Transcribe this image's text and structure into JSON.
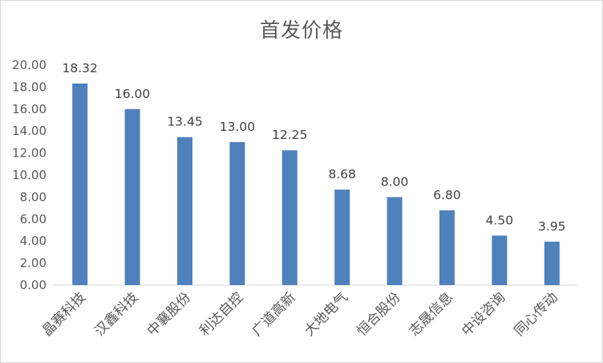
{
  "chart_data": {
    "type": "bar",
    "title": "首发价格",
    "categories": [
      "晶赛科技",
      "汉鑫科技",
      "中襄股份",
      "利达自控",
      "广道高新",
      "大地电气",
      "恒合股份",
      "志晟信息",
      "中设咨询",
      "同心传动"
    ],
    "values": [
      18.32,
      16.0,
      13.45,
      13.0,
      12.25,
      8.68,
      8.0,
      6.8,
      4.5,
      3.95
    ],
    "value_labels": [
      "18.32",
      "16.00",
      "13.45",
      "13.00",
      "12.25",
      "8.68",
      "8.00",
      "6.80",
      "4.50",
      "3.95"
    ],
    "ylim": [
      0,
      20
    ],
    "yticks": [
      "0.00",
      "2.00",
      "4.00",
      "6.00",
      "8.00",
      "10.00",
      "12.00",
      "14.00",
      "16.00",
      "18.00",
      "20.00"
    ],
    "xlabel": "",
    "ylabel": "",
    "grid": false,
    "legend": "none",
    "colors": {
      "bar": "#4F81BD",
      "axis": "#d9d9d9",
      "text": "#595959"
    }
  }
}
